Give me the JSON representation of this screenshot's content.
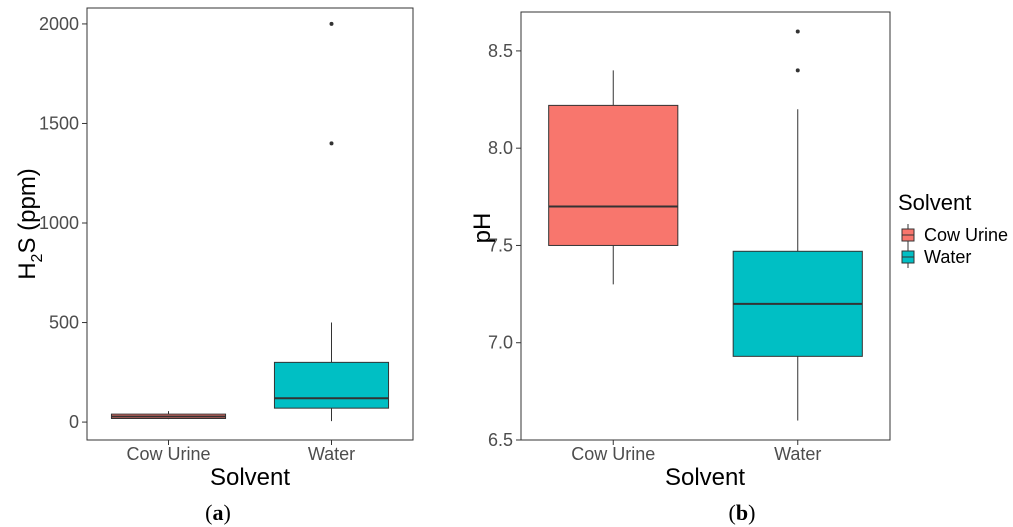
{
  "chart_data": [
    {
      "type": "box",
      "panel_label": "a",
      "xlabel": "Solvent",
      "ylabel": "H2S (ppm)",
      "ylabel_parts": {
        "pre": "H",
        "sub": "2",
        "post": "S (ppm)"
      },
      "ylim": [
        -90,
        2080
      ],
      "yticks": [
        0,
        500,
        1000,
        1500,
        2000
      ],
      "categories": [
        "Cow Urine",
        "Water"
      ],
      "boxes": [
        {
          "name": "Cow Urine",
          "color": "#F8766D",
          "min": 15,
          "q1": 18,
          "median": 28,
          "q3": 40,
          "max": 55,
          "outliers": []
        },
        {
          "name": "Water",
          "color": "#00BFC4",
          "min": 5,
          "q1": 70,
          "median": 120,
          "q3": 300,
          "max": 500,
          "outliers": [
            1400,
            2000
          ]
        }
      ]
    },
    {
      "type": "box",
      "panel_label": "b",
      "xlabel": "Solvent",
      "ylabel": "pH",
      "ylim": [
        6.5,
        8.7
      ],
      "yticks": [
        6.5,
        7.0,
        7.5,
        8.0,
        8.5
      ],
      "ytick_labels": [
        "6.5",
        "7.0",
        "7.5",
        "8.0",
        "8.5"
      ],
      "categories": [
        "Cow Urine",
        "Water"
      ],
      "boxes": [
        {
          "name": "Cow Urine",
          "color": "#F8766D",
          "min": 7.3,
          "q1": 7.5,
          "median": 7.7,
          "q3": 8.22,
          "max": 8.4,
          "outliers": []
        },
        {
          "name": "Water",
          "color": "#00BFC4",
          "min": 6.6,
          "q1": 6.93,
          "median": 7.2,
          "q3": 7.47,
          "max": 8.2,
          "outliers": [
            8.4,
            8.6
          ]
        }
      ]
    }
  ],
  "legend": {
    "title": "Solvent",
    "items": [
      {
        "label": "Cow Urine",
        "color": "#F8766D"
      },
      {
        "label": "Water",
        "color": "#00BFC4"
      }
    ]
  }
}
